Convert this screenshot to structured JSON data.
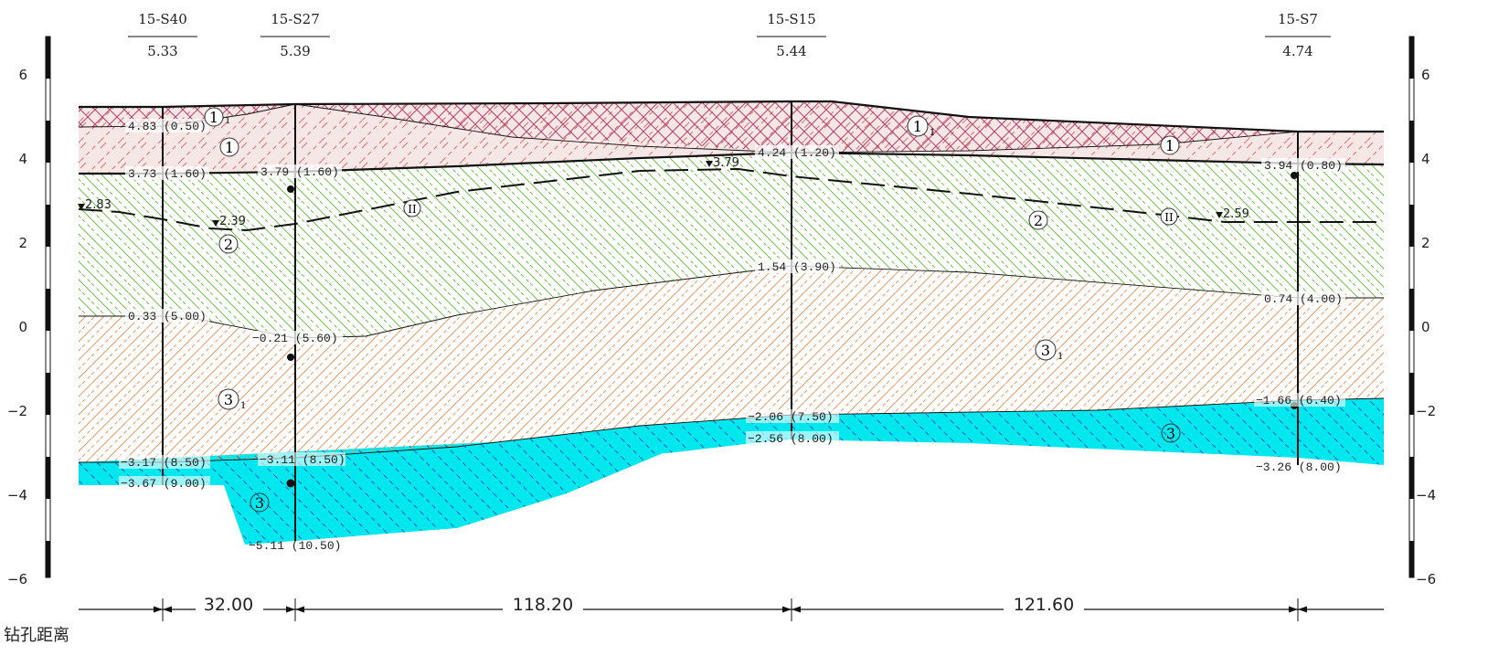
{
  "boreholes": [
    {
      "id": "15-S40",
      "elevation": "5.33"
    },
    {
      "id": "15-S27",
      "elevation": "5.39"
    },
    {
      "id": "15-S15",
      "elevation": "5.44"
    },
    {
      "id": "15-S7",
      "elevation": "4.74"
    }
  ],
  "axis": {
    "left_ticks": [
      "6",
      "4",
      "2",
      "0",
      "−2",
      "−4",
      "−6"
    ],
    "right_ticks": [
      "6",
      "4",
      "2",
      "0",
      "−2",
      "−4",
      "−6"
    ]
  },
  "distances": {
    "label": "钻孔距离",
    "values": [
      "32.00",
      "118.20",
      "121.60"
    ]
  },
  "layer_labels": {
    "l1_1": "1",
    "l1": "1",
    "l2": "2",
    "l3_1": "3",
    "l3": "3",
    "sub1": "1",
    "water_ii": "II"
  },
  "depth_labels": {
    "s40_a": "4.83 (0.50)",
    "s40_b": "3.73 (1.60)",
    "s40_c": "0.33 (5.00)",
    "s40_d": "−3.17 (8.50)",
    "s40_e": "−3.67 (9.00)",
    "s27_a": "3.79 (1.60)",
    "s27_b": "−0.21 (5.60)",
    "s27_c": "−3.11 (8.50)",
    "s27_d": "−5.11 (10.50)",
    "s15_a": "4.24 (1.20)",
    "s15_b": "1.54 (3.90)",
    "s15_c": "−2.06 (7.50)",
    "s15_d": "−2.56 (8.00)",
    "s7_a": "3.94 (0.80)",
    "s7_b": "0.74 (4.00)",
    "s7_c": "−1.66 (6.40)",
    "s7_d": "−3.26 (8.00)"
  },
  "water_levels": {
    "w1": "2.83",
    "w2": "2.39",
    "w3": "3.79",
    "w4": "2.59"
  },
  "colors": {
    "fill_layer1": "#f2dede",
    "hatch_layer1_1": "#b0426a",
    "hatch_layer1": "#d87070",
    "hatch_layer2": "#6dbf45",
    "hatch_layer3_1": "#e39a63",
    "fill_layer3": "#00e8ee",
    "hatch_layer3": "#2c5bc0"
  }
}
